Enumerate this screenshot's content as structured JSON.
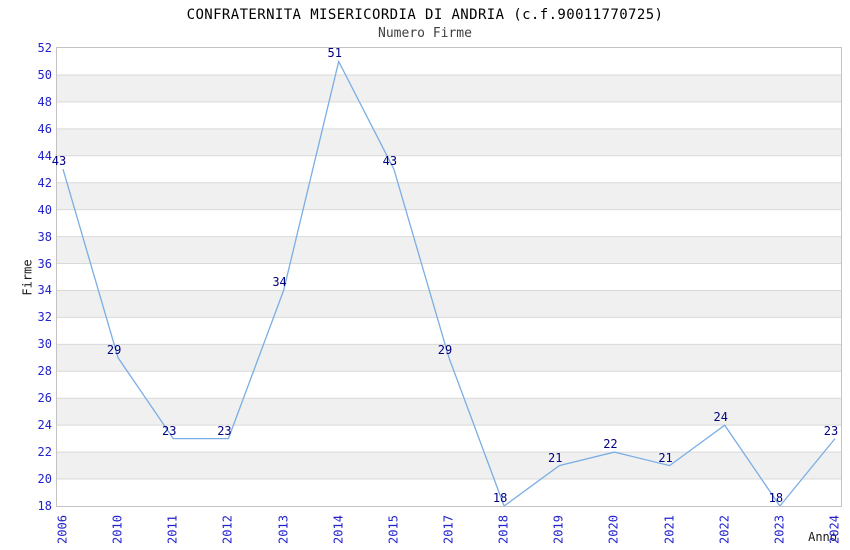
{
  "header": {
    "title": "CONFRATERNITA MISERICORDIA DI ANDRIA (c.f.90011770725)",
    "subtitle": "Numero Firme"
  },
  "chart_data": {
    "type": "line",
    "title": "CONFRATERNITA MISERICORDIA DI ANDRIA (c.f.90011770725)",
    "subtitle": "Numero Firme",
    "xlabel": "Anno",
    "ylabel": "Firme",
    "categories": [
      "2006",
      "2010",
      "2011",
      "2012",
      "2013",
      "2014",
      "2015",
      "2017",
      "2018",
      "2019",
      "2020",
      "2021",
      "2022",
      "2023",
      "2024"
    ],
    "values": [
      43,
      29,
      23,
      23,
      34,
      51,
      43,
      29,
      18,
      21,
      22,
      21,
      24,
      18,
      23
    ],
    "ylim": [
      18,
      52
    ],
    "ytick_step": 2,
    "grid": "alternating horizontal bands with thin gridlines",
    "legend_position": "none",
    "point_labels_visible": true,
    "colors": {
      "line": "#7aaee4",
      "tick_label": "#2222cc",
      "value_label": "#000080",
      "band": "#f0f0f0",
      "gridline": "#d9d9d9",
      "border": "#c3c3c3",
      "title": "#000000",
      "subtitle": "#404040",
      "axis_title": "#1a1a1a"
    }
  }
}
